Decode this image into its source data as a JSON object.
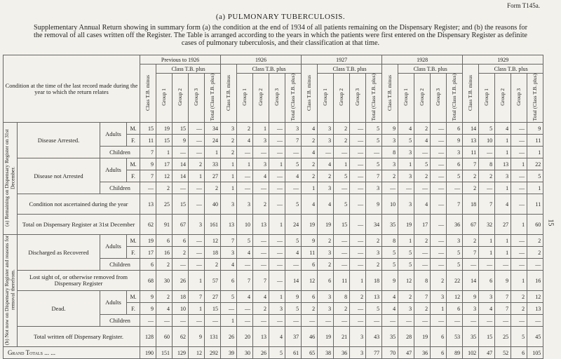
{
  "header": {
    "form": "Form T145a.",
    "title": "(a) PULMONARY TUBERCULOSIS.",
    "intro": "Supplementary Annual Return showing in summary form (a) the condition at the end of 1934 of all patients remaining on the Dispensary Register; and (b) the reasons for the removal of all cases written off the Register. The Table is arranged according to the years in which the patients were first entered on the Dispensary Register as definite cases of pulmonary tuberculosis, and their classification at that time."
  },
  "table": {
    "condition_header": "Condition at the time of the last record made during the year to which the return relates",
    "years": [
      "Previous to 1926",
      "1926",
      "1927",
      "1928",
      "1929"
    ],
    "minus_header": "Class T.B. minus",
    "plus_header": "Class T.B. plus",
    "plus_columns": [
      "Group 1",
      "Group 2",
      "Group 3",
      "Total (Class T.B. plus)"
    ],
    "sections": [
      {
        "label": "(a) Remaining on Dispensary Register on 31st December.",
        "groups": [
          {
            "label": "Disease Arrested.",
            "subgroups": [
              {
                "label": "Adults",
                "rows": [
                  {
                    "label": "M.",
                    "cells": [
                      "15",
                      "19",
                      "15",
                      "—",
                      "34",
                      "3",
                      "2",
                      "1",
                      "—",
                      "3",
                      "4",
                      "3",
                      "2",
                      "—",
                      "5",
                      "9",
                      "4",
                      "2",
                      "—",
                      "6",
                      "14",
                      "5",
                      "4",
                      "—",
                      "9"
                    ]
                  },
                  {
                    "label": "F.",
                    "cells": [
                      "11",
                      "15",
                      "9",
                      "—",
                      "24",
                      "2",
                      "4",
                      "3",
                      "—",
                      "7",
                      "2",
                      "3",
                      "2",
                      "—",
                      "5",
                      "3",
                      "5",
                      "4",
                      "—",
                      "9",
                      "13",
                      "10",
                      "1",
                      "—",
                      "11"
                    ]
                  }
                ]
              },
              {
                "label": "Children",
                "cells": [
                  "7",
                  "1",
                  "—",
                  "—",
                  "1",
                  "2",
                  "—",
                  "—",
                  "—",
                  "—",
                  "4",
                  "—",
                  "—",
                  "—",
                  "—",
                  "8",
                  "3",
                  "—",
                  "—",
                  "3",
                  "11",
                  "—",
                  "1",
                  "—",
                  "1"
                ]
              }
            ]
          },
          {
            "label": "Disease not Arrested",
            "subgroups": [
              {
                "label": "Adults",
                "rows": [
                  {
                    "label": "M.",
                    "cells": [
                      "9",
                      "17",
                      "14",
                      "2",
                      "33",
                      "1",
                      "1",
                      "3",
                      "1",
                      "5",
                      "2",
                      "4",
                      "1",
                      "—",
                      "5",
                      "3",
                      "1",
                      "5",
                      "—",
                      "6",
                      "7",
                      "8",
                      "13",
                      "1",
                      "22"
                    ]
                  },
                  {
                    "label": "F.",
                    "cells": [
                      "7",
                      "12",
                      "14",
                      "1",
                      "27",
                      "1",
                      "—",
                      "4",
                      "—",
                      "4",
                      "2",
                      "2",
                      "5",
                      "—",
                      "7",
                      "2",
                      "3",
                      "2",
                      "—",
                      "5",
                      "2",
                      "2",
                      "3",
                      "—",
                      "5"
                    ]
                  }
                ]
              },
              {
                "label": "Children",
                "cells": [
                  "—",
                  "2",
                  "—",
                  "—",
                  "2",
                  "1",
                  "—",
                  "—",
                  "—",
                  "—",
                  "1",
                  "3",
                  "—",
                  "—",
                  "3",
                  "—",
                  "—",
                  "—",
                  "—",
                  "—",
                  "2",
                  "—",
                  "1",
                  "—",
                  "1"
                ]
              }
            ]
          },
          {
            "label": "Condition not ascertained during the year",
            "cells": [
              "13",
              "25",
              "15",
              "—",
              "40",
              "3",
              "3",
              "2",
              "—",
              "5",
              "4",
              "4",
              "5",
              "—",
              "9",
              "10",
              "3",
              "4",
              "—",
              "7",
              "18",
              "7",
              "4",
              "—",
              "11"
            ]
          },
          {
            "label": "Total on Dispensary Register at 31st December",
            "cells": [
              "62",
              "91",
              "67",
              "3",
              "161",
              "13",
              "10",
              "13",
              "1",
              "24",
              "19",
              "19",
              "15",
              "—",
              "34",
              "35",
              "19",
              "17",
              "—",
              "36",
              "67",
              "32",
              "27",
              "1",
              "60"
            ]
          }
        ]
      },
      {
        "label": "(b) Not now on Dispensary Register and reasons for removal therefrom.",
        "groups": [
          {
            "label": "Discharged as Recovered",
            "subgroups": [
              {
                "label": "Adults",
                "rows": [
                  {
                    "label": "M.",
                    "cells": [
                      "19",
                      "6",
                      "6",
                      "—",
                      "12",
                      "7",
                      "5",
                      "—",
                      "—",
                      "5",
                      "9",
                      "2",
                      "—",
                      "—",
                      "2",
                      "8",
                      "1",
                      "2",
                      "—",
                      "3",
                      "2",
                      "1",
                      "1",
                      "—",
                      "2"
                    ]
                  },
                  {
                    "label": "F.",
                    "cells": [
                      "17",
                      "16",
                      "2",
                      "—",
                      "18",
                      "3",
                      "4",
                      "—",
                      "—",
                      "4",
                      "11",
                      "3",
                      "—",
                      "—",
                      "3",
                      "5",
                      "5",
                      "—",
                      "—",
                      "5",
                      "7",
                      "1",
                      "1",
                      "—",
                      "2"
                    ]
                  }
                ]
              },
              {
                "label": "Children",
                "cells": [
                  "6",
                  "2",
                  "—",
                  "—",
                  "2",
                  "4",
                  "—",
                  "—",
                  "—",
                  "—",
                  "6",
                  "2",
                  "—",
                  "—",
                  "2",
                  "5",
                  "5",
                  "—",
                  "—",
                  "5",
                  "—",
                  "—",
                  "—",
                  "—",
                  "—"
                ]
              }
            ]
          },
          {
            "label": "Lost sight of, or otherwise removed from Dispensary Register",
            "cells": [
              "68",
              "30",
              "26",
              "1",
              "57",
              "6",
              "7",
              "7",
              "—",
              "14",
              "12",
              "6",
              "11",
              "1",
              "18",
              "9",
              "12",
              "8",
              "2",
              "22",
              "14",
              "6",
              "9",
              "1",
              "16"
            ]
          },
          {
            "label": "Dead.",
            "subgroups": [
              {
                "label": "Adults",
                "rows": [
                  {
                    "label": "M.",
                    "cells": [
                      "9",
                      "2",
                      "18",
                      "7",
                      "27",
                      "5",
                      "4",
                      "4",
                      "1",
                      "9",
                      "6",
                      "3",
                      "8",
                      "2",
                      "13",
                      "4",
                      "2",
                      "7",
                      "3",
                      "12",
                      "9",
                      "3",
                      "7",
                      "2",
                      "12"
                    ]
                  },
                  {
                    "label": "F.",
                    "cells": [
                      "9",
                      "4",
                      "10",
                      "1",
                      "15",
                      "—",
                      "—",
                      "2",
                      "3",
                      "5",
                      "2",
                      "3",
                      "2",
                      "—",
                      "5",
                      "4",
                      "3",
                      "2",
                      "1",
                      "6",
                      "3",
                      "4",
                      "7",
                      "2",
                      "13"
                    ]
                  }
                ]
              },
              {
                "label": "Children",
                "cells": [
                  "—",
                  "—",
                  "—",
                  "—",
                  "—",
                  "1",
                  "—",
                  "—",
                  "—",
                  "—",
                  "—",
                  "—",
                  "—",
                  "—",
                  "—",
                  "—",
                  "—",
                  "—",
                  "—",
                  "—",
                  "—",
                  "—",
                  "—",
                  "—",
                  "—"
                ]
              }
            ]
          },
          {
            "label": "Total written off Dispensary Register.",
            "cells": [
              "128",
              "60",
              "62",
              "9",
              "131",
              "26",
              "20",
              "13",
              "4",
              "37",
              "46",
              "19",
              "21",
              "3",
              "43",
              "35",
              "28",
              "19",
              "6",
              "53",
              "35",
              "15",
              "25",
              "5",
              "45"
            ]
          }
        ]
      }
    ],
    "grand_total": {
      "label": "Grand Totals ... ...",
      "cells": [
        "190",
        "151",
        "129",
        "12",
        "292",
        "39",
        "30",
        "26",
        "5",
        "61",
        "65",
        "38",
        "36",
        "3",
        "77",
        "70",
        "47",
        "36",
        "6",
        "89",
        "102",
        "47",
        "52",
        "6",
        "105"
      ]
    }
  },
  "page_number": "15"
}
